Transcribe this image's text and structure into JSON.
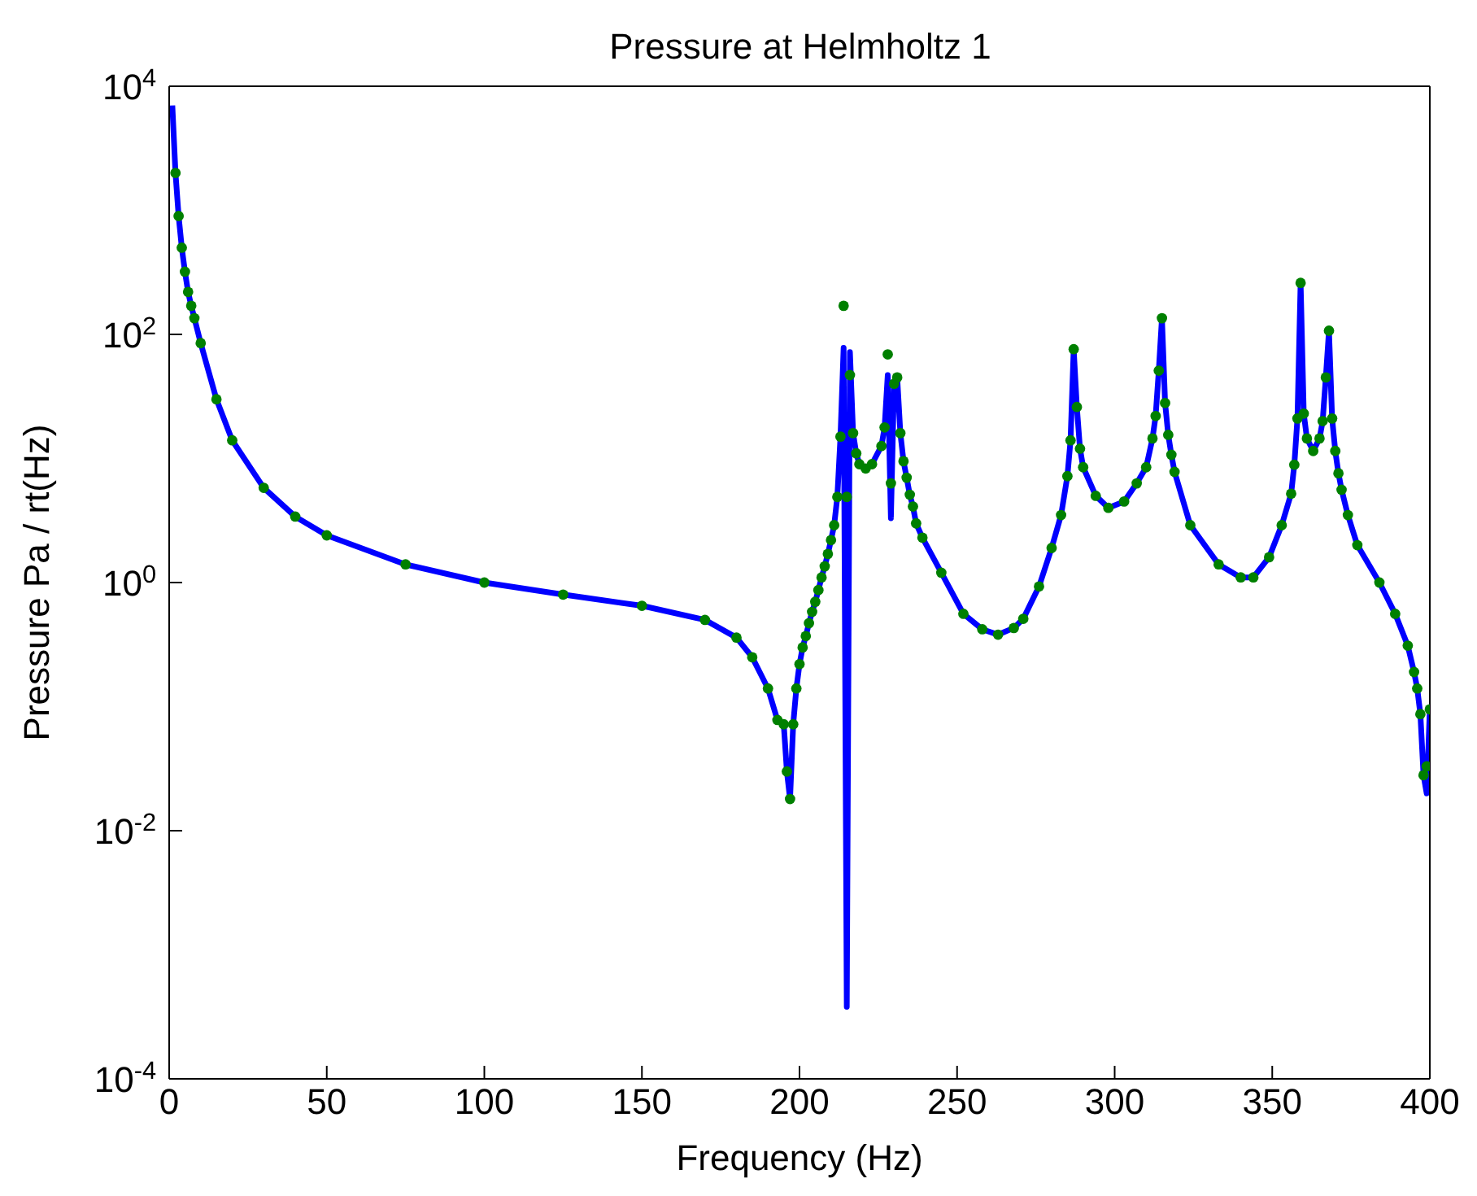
{
  "chart_data": {
    "type": "line",
    "title": "Pressure at Helmholtz 1",
    "xlabel": "Frequency (Hz)",
    "ylabel": "Pressure Pa / rt(Hz)",
    "log": "y",
    "grid": false,
    "legend": false,
    "xlim": [
      0,
      400
    ],
    "xticks": [
      0,
      50,
      100,
      150,
      200,
      250,
      300,
      350,
      400
    ],
    "ylim": [
      0.0001,
      10000
    ],
    "yticks": [
      {
        "value": 0.0001,
        "label": "10$^{-4}$"
      },
      {
        "value": 0.01,
        "label": "10$^{-2}$"
      },
      {
        "value": 1,
        "label": "10$^{0}$"
      },
      {
        "value": 100,
        "label": "10$^{2}$"
      },
      {
        "value": 10000,
        "label": "10$^{4}$"
      }
    ],
    "series": [
      {
        "type": "line",
        "color": "#0000ff",
        "marker": "none",
        "line_style": "solid",
        "x": [
          1,
          2,
          3,
          4,
          5,
          6,
          7,
          8,
          10,
          15,
          20,
          30,
          40,
          50,
          75,
          100,
          125,
          150,
          170,
          180,
          185,
          190,
          193,
          195,
          196,
          197,
          198,
          199,
          200,
          201,
          202,
          203,
          204,
          205,
          206,
          207,
          208,
          209,
          210,
          211,
          212,
          213,
          214,
          215,
          216,
          217,
          218,
          219,
          221,
          223,
          226,
          227,
          228,
          229,
          230,
          231,
          232,
          233,
          234,
          235,
          236,
          237,
          239,
          245,
          252,
          258,
          263,
          268,
          271,
          276,
          280,
          283,
          285,
          286,
          287,
          288,
          289,
          290,
          294,
          298,
          303,
          307,
          310,
          312,
          313,
          314,
          315,
          316,
          317,
          318,
          319,
          324,
          333,
          340,
          344,
          349,
          353,
          356,
          357,
          358,
          359,
          360,
          361,
          363,
          365,
          366,
          367,
          368,
          369,
          370,
          371,
          372,
          374,
          377,
          384,
          389,
          393,
          395,
          396,
          397,
          398,
          399,
          400
        ],
        "values": [
          7000,
          2000,
          900,
          500,
          320,
          220,
          170,
          135,
          85,
          30,
          14,
          5.8,
          3.4,
          2.4,
          1.4,
          1.0,
          0.8,
          0.65,
          0.5,
          0.36,
          0.25,
          0.14,
          0.078,
          0.072,
          0.03,
          0.018,
          0.072,
          0.14,
          0.22,
          0.3,
          0.37,
          0.47,
          0.58,
          0.7,
          0.87,
          1.1,
          1.35,
          1.7,
          2.2,
          2.9,
          4.9,
          15,
          78,
          0.00038,
          72,
          16,
          11,
          9,
          8.3,
          9,
          12.6,
          17.8,
          47,
          3.3,
          40,
          45,
          16,
          9.5,
          7,
          5.1,
          4.1,
          3,
          2.3,
          1.2,
          0.56,
          0.42,
          0.38,
          0.43,
          0.51,
          0.93,
          1.9,
          3.5,
          7.2,
          14,
          76,
          26,
          12,
          8.5,
          5,
          4,
          4.5,
          6.3,
          8.5,
          14.5,
          22,
          51,
          135,
          28,
          15.5,
          10.7,
          7.8,
          2.9,
          1.4,
          1.1,
          1.1,
          1.6,
          2.9,
          5.2,
          8.9,
          21,
          260,
          23,
          14.5,
          11.5,
          14.5,
          20,
          45,
          107,
          21,
          11.5,
          7.6,
          5.6,
          3.5,
          2,
          1,
          0.56,
          0.31,
          0.19,
          0.14,
          0.087,
          0.028,
          0.02,
          0.095
        ]
      },
      {
        "type": "scatter",
        "color": "#008000",
        "marker": "circle",
        "x": [
          2,
          3,
          4,
          5,
          6,
          7,
          8,
          10,
          15,
          20,
          30,
          40,
          50,
          75,
          100,
          125,
          150,
          170,
          180,
          185,
          190,
          193,
          195,
          196,
          197,
          198,
          199,
          200,
          201,
          202,
          203,
          204,
          205,
          206,
          207,
          208,
          209,
          210,
          211,
          212,
          213,
          214,
          215,
          216,
          217,
          218,
          219,
          221,
          223,
          226,
          227,
          228,
          229,
          230,
          231,
          232,
          233,
          234,
          235,
          236,
          237,
          239,
          245,
          252,
          258,
          263,
          268,
          271,
          276,
          280,
          283,
          285,
          286,
          287,
          288,
          289,
          290,
          294,
          298,
          303,
          307,
          310,
          312,
          313,
          314,
          315,
          316,
          317,
          318,
          319,
          324,
          333,
          340,
          344,
          349,
          353,
          356,
          357,
          358,
          359,
          360,
          361,
          363,
          365,
          366,
          367,
          368,
          369,
          370,
          371,
          372,
          374,
          377,
          384,
          389,
          393,
          395,
          396,
          397,
          398,
          399,
          400
        ],
        "values": [
          2000,
          900,
          500,
          320,
          220,
          170,
          135,
          85,
          30,
          14,
          5.8,
          3.4,
          2.4,
          1.4,
          1.0,
          0.8,
          0.65,
          0.5,
          0.36,
          0.25,
          0.14,
          0.078,
          0.072,
          0.03,
          0.018,
          0.072,
          0.14,
          0.22,
          0.3,
          0.37,
          0.47,
          0.58,
          0.7,
          0.87,
          1.1,
          1.35,
          1.7,
          2.2,
          2.9,
          4.9,
          15,
          170,
          4.9,
          47,
          16,
          11,
          9,
          8.3,
          9,
          12.6,
          17.8,
          69,
          6.3,
          40,
          45,
          16,
          9.5,
          7,
          5.1,
          4.1,
          3,
          2.3,
          1.2,
          0.56,
          0.42,
          0.38,
          0.43,
          0.51,
          0.93,
          1.9,
          3.5,
          7.2,
          14,
          76,
          26,
          12,
          8.5,
          5,
          4,
          4.5,
          6.3,
          8.5,
          14.5,
          22,
          51,
          135,
          28,
          15.5,
          10.7,
          7.8,
          2.9,
          1.4,
          1.1,
          1.1,
          1.6,
          2.9,
          5.2,
          8.9,
          21,
          260,
          23,
          14.5,
          11.5,
          14.5,
          20,
          45,
          107,
          21,
          11.5,
          7.6,
          5.6,
          3.5,
          2,
          1,
          0.56,
          0.31,
          0.19,
          0.14,
          0.087,
          0.028,
          0.033,
          0.095
        ]
      }
    ]
  }
}
